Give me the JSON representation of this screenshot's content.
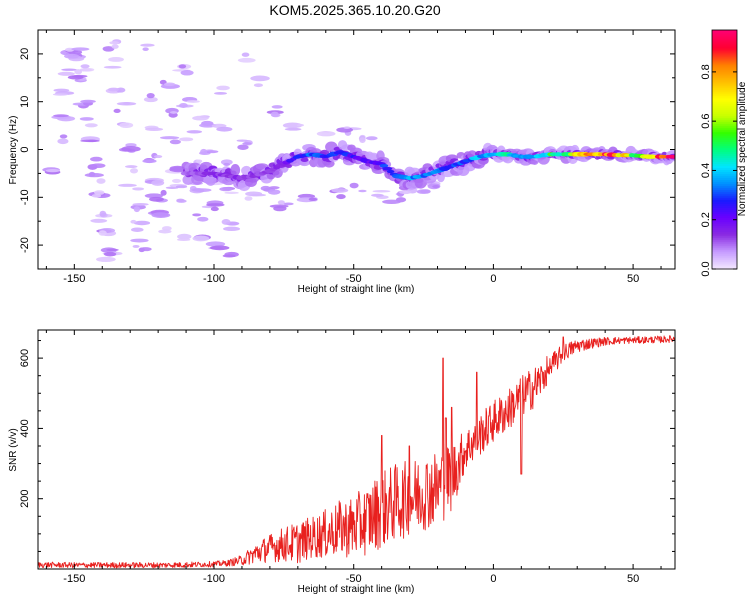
{
  "figure": {
    "title": "KOM5.2025.365.10.20.G20"
  },
  "chart_data": [
    {
      "type": "heatmap",
      "name": "spectrogram",
      "xlabel": "Height of straight line (km)",
      "ylabel": "Frequency (Hz)",
      "xlim": [
        -163,
        65
      ],
      "ylim": [
        -25,
        25
      ],
      "xticks": [
        -150,
        -100,
        -50,
        0,
        50
      ],
      "yticks": [
        -20,
        -10,
        0,
        10,
        20
      ],
      "colorbar": {
        "label": "Normalized spectral amplitude",
        "range": [
          0,
          0.97
        ],
        "ticks": [
          0.0,
          0.2,
          0.4,
          0.6,
          0.8
        ],
        "tick_labels": [
          "0.0",
          "0.2",
          "0.4",
          "0.6",
          "0.8"
        ],
        "colormap": [
          "#f2e6ff",
          "#c59bff",
          "#8a2be2",
          "#6a00ff",
          "#1a1aff",
          "#0090ff",
          "#00e5ff",
          "#00ff80",
          "#33ff00",
          "#c8ff00",
          "#ffff00",
          "#ffc000",
          "#ff8000",
          "#ff0030",
          "#ff0070"
        ]
      },
      "main_ridge": {
        "x": [
          -110,
          -100,
          -95,
          -90,
          -85,
          -80,
          -75,
          -70,
          -65,
          -60,
          -55,
          -50,
          -45,
          -40,
          -35,
          -30,
          -25,
          -20,
          -15,
          -10,
          -5,
          0,
          5,
          10,
          15,
          20,
          25,
          30,
          35,
          40,
          45,
          50,
          55,
          60,
          65
        ],
        "freq": [
          -5,
          -5,
          -5.5,
          -6,
          -5.5,
          -4.5,
          -3,
          -1.5,
          -1,
          -1.5,
          -0.5,
          -1.5,
          -2.5,
          -3,
          -5.5,
          -6,
          -5.5,
          -4.5,
          -3.5,
          -2.5,
          -1.5,
          -1,
          -1,
          -1.5,
          -1.5,
          -1,
          -1,
          -1,
          -1,
          -1,
          -1.2,
          -1.2,
          -1.5,
          -1.5,
          -1.5
        ],
        "amplitude": [
          0.12,
          0.14,
          0.15,
          0.14,
          0.13,
          0.15,
          0.2,
          0.28,
          0.32,
          0.3,
          0.3,
          0.25,
          0.22,
          0.28,
          0.32,
          0.4,
          0.38,
          0.33,
          0.32,
          0.35,
          0.4,
          0.45,
          0.48,
          0.38,
          0.35,
          0.5,
          0.6,
          0.7,
          0.85,
          0.9,
          0.8,
          0.6,
          0.7,
          0.88,
          0.92
        ]
      },
      "scatter_blobs": [
        [
          -157,
          -5
        ],
        [
          -155,
          2
        ],
        [
          -154,
          7
        ],
        [
          -153,
          12
        ],
        [
          -152,
          16
        ],
        [
          -151,
          20
        ],
        [
          -150,
          20
        ],
        [
          -149,
          20
        ],
        [
          -148,
          15
        ],
        [
          -147,
          17
        ],
        [
          -146,
          10
        ],
        [
          -145,
          6
        ],
        [
          -144,
          2
        ],
        [
          -143,
          -3
        ],
        [
          -142,
          -6
        ],
        [
          -141,
          -9
        ],
        [
          -140,
          -14
        ],
        [
          -139,
          -17
        ],
        [
          -138,
          -22
        ],
        [
          -137,
          -21
        ],
        [
          -136,
          22
        ],
        [
          -135,
          18
        ],
        [
          -134,
          13
        ],
        [
          -133,
          9
        ],
        [
          -132,
          5
        ],
        [
          -131,
          0
        ],
        [
          -130,
          -4
        ],
        [
          -129,
          -8
        ],
        [
          -128,
          -12
        ],
        [
          -127,
          -16
        ],
        [
          -126,
          -20
        ],
        [
          -125,
          21
        ],
        [
          -124,
          11
        ],
        [
          -123,
          4
        ],
        [
          -122,
          -2
        ],
        [
          -121,
          -6
        ],
        [
          -120,
          -10
        ],
        [
          -119,
          -13
        ],
        [
          -118,
          -17
        ],
        [
          -117,
          14
        ],
        [
          -116,
          8
        ],
        [
          -115,
          2
        ],
        [
          -114,
          -4
        ],
        [
          -113,
          -7
        ],
        [
          -112,
          -11
        ],
        [
          -111,
          -19
        ],
        [
          -110,
          17
        ],
        [
          -109,
          10
        ],
        [
          -108,
          3
        ],
        [
          -107,
          -2
        ],
        [
          -106,
          -8
        ],
        [
          -105,
          -14
        ],
        [
          -104,
          -18
        ],
        [
          -103,
          6
        ],
        [
          -102,
          0
        ],
        [
          -101,
          -6
        ],
        [
          -100,
          -12
        ],
        [
          -99,
          -20
        ],
        [
          -98,
          12
        ],
        [
          -97,
          4
        ],
        [
          -96,
          -3
        ],
        [
          -95,
          -9
        ],
        [
          -94,
          -16
        ],
        [
          -93,
          -22
        ],
        [
          -90,
          19
        ],
        [
          -88,
          1
        ],
        [
          -86,
          -10
        ],
        [
          -84,
          14
        ],
        [
          -80,
          -8
        ],
        [
          -78,
          8
        ],
        [
          -75,
          -12
        ],
        [
          -70,
          5
        ],
        [
          -65,
          -10
        ],
        [
          -60,
          3
        ],
        [
          -55,
          -9
        ],
        [
          -52,
          4
        ],
        [
          -48,
          -8
        ],
        [
          -45,
          2
        ],
        [
          -40,
          -9
        ],
        [
          -35,
          -10
        ],
        [
          -30,
          -9
        ],
        [
          -25,
          -8
        ],
        [
          -20,
          -7
        ]
      ]
    },
    {
      "type": "line",
      "name": "snr",
      "xlabel": "Height of straight line (km)",
      "ylabel": "SNR (v/v)",
      "xlim": [
        -163,
        65
      ],
      "ylim": [
        0,
        680
      ],
      "xticks": [
        -150,
        -100,
        -50,
        0,
        50
      ],
      "yticks": [
        200,
        400,
        600
      ],
      "series": [
        {
          "name": "SNR",
          "color": "#e8201e",
          "x": [
            -163,
            -150,
            -140,
            -130,
            -120,
            -110,
            -100,
            -95,
            -90,
            -85,
            -80,
            -75,
            -70,
            -65,
            -60,
            -55,
            -50,
            -45,
            -40,
            -35,
            -30,
            -25,
            -20,
            -15,
            -10,
            -5,
            0,
            5,
            10,
            15,
            20,
            25,
            30,
            35,
            40,
            45,
            50,
            55,
            60,
            65
          ],
          "mean": [
            12,
            11,
            11,
            11,
            11,
            12,
            14,
            17,
            25,
            45,
            60,
            70,
            75,
            90,
            100,
            115,
            120,
            140,
            170,
            190,
            200,
            220,
            230,
            260,
            340,
            380,
            420,
            450,
            490,
            520,
            570,
            615,
            635,
            642,
            648,
            650,
            651,
            652,
            653,
            655
          ],
          "spread": [
            8,
            8,
            8,
            8,
            8,
            8,
            8,
            9,
            15,
            30,
            40,
            50,
            60,
            60,
            70,
            80,
            90,
            100,
            110,
            110,
            110,
            110,
            110,
            100,
            60,
            60,
            60,
            60,
            60,
            60,
            40,
            25,
            20,
            15,
            12,
            10,
            10,
            10,
            10,
            10
          ],
          "spikes": [
            [
              -18,
              600
            ],
            [
              -15,
              460
            ],
            [
              -17,
              430
            ],
            [
              -6,
              560
            ],
            [
              10,
              270
            ],
            [
              -40,
              380
            ],
            [
              -30,
              350
            ],
            [
              20,
              555
            ],
            [
              25,
              660
            ]
          ]
        }
      ]
    }
  ]
}
